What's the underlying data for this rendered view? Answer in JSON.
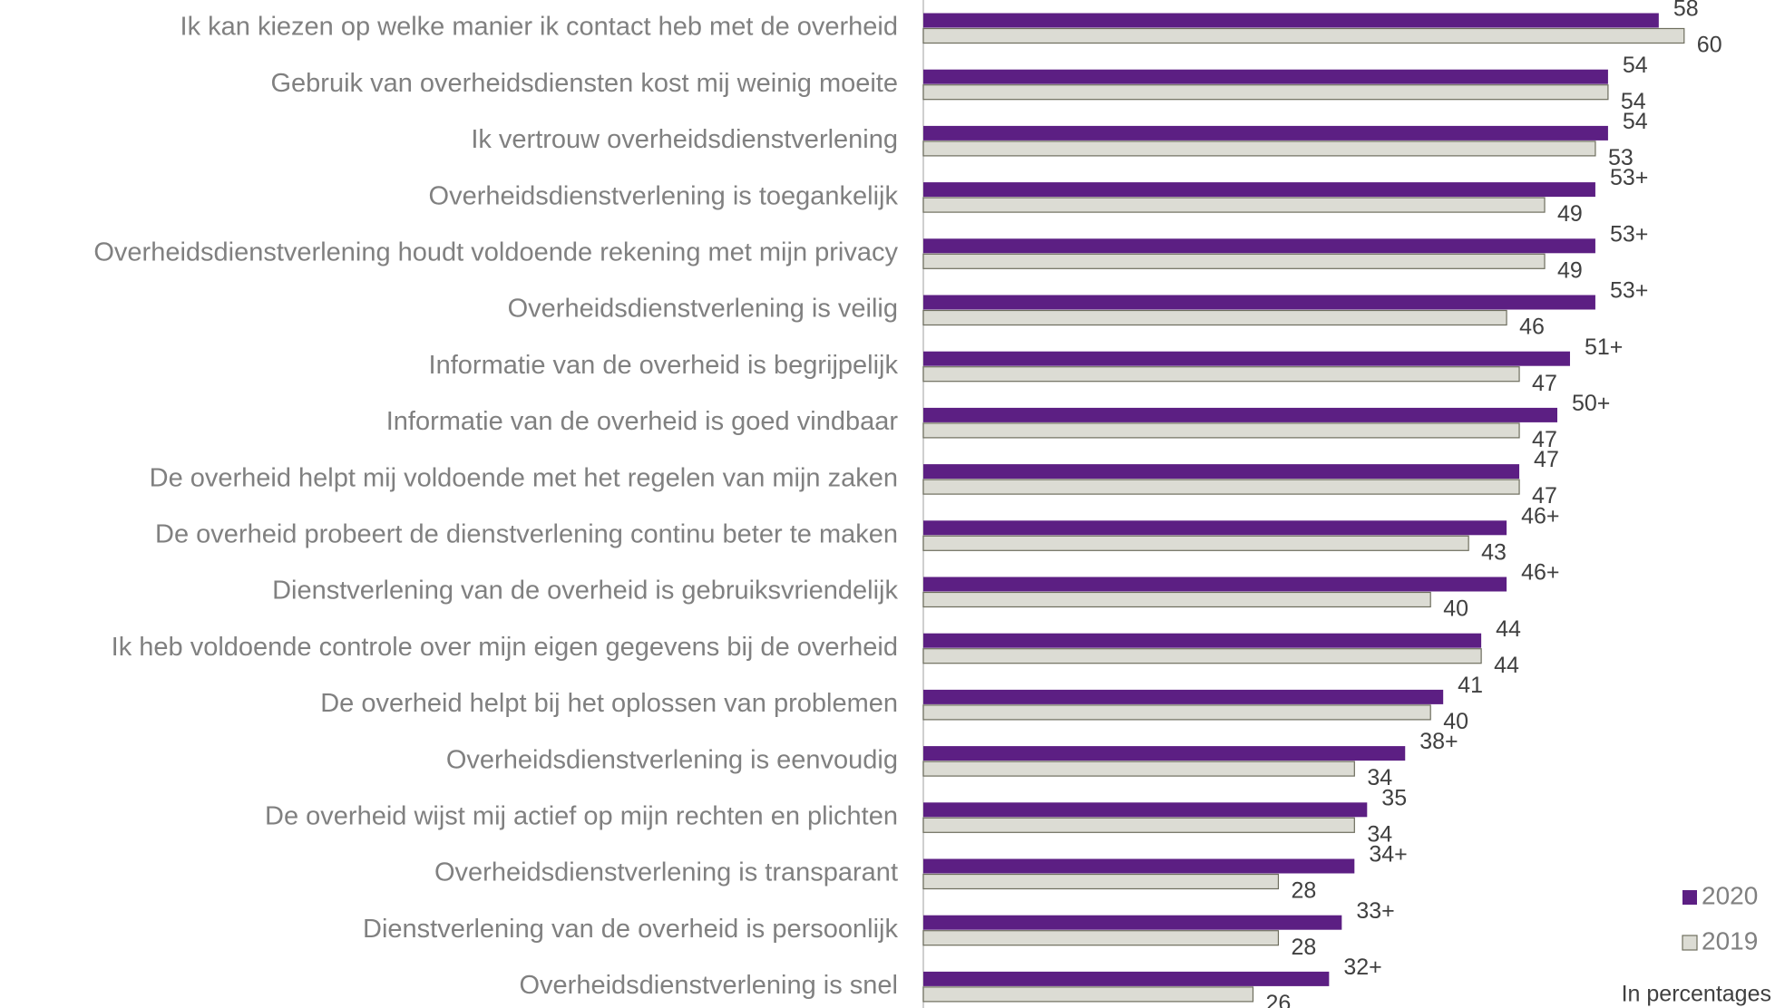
{
  "chart_data": {
    "type": "bar",
    "orientation": "horizontal",
    "note": "In percentages",
    "categories": [
      "Ik kan kiezen op welke manier ik contact heb met de overheid",
      "Gebruik van overheidsdiensten kost mij weinig moeite",
      "Ik vertrouw overheidsdienstverlening",
      "Overheidsdienstverlening is toegankelijk",
      "Overheidsdienstverlening houdt voldoende rekening met mijn privacy",
      "Overheidsdienstverlening is veilig",
      "Informatie van de overheid is begrijpelijk",
      "Informatie van de overheid is goed vindbaar",
      "De overheid helpt mij voldoende met het regelen van mijn zaken",
      "De overheid probeert de dienstverlening continu beter te maken",
      "Dienstverlening van de overheid is gebruiksvriendelijk",
      "Ik heb voldoende controle over mijn eigen gegevens bij de overheid",
      "De overheid helpt bij het oplossen van problemen",
      "Overheidsdienstverlening is eenvoudig",
      "De overheid wijst mij actief op mijn rechten en plichten",
      "Overheidsdienstverlening is transparant",
      "Dienstverlening van de overheid is persoonlijk",
      "Overheidsdienstverlening is snel"
    ],
    "series": [
      {
        "name": "2020",
        "color": "#5c1f83",
        "values": [
          58,
          54,
          54,
          53,
          53,
          53,
          51,
          50,
          47,
          46,
          46,
          44,
          41,
          38,
          35,
          34,
          33,
          32
        ],
        "value_labels": [
          "58",
          "54",
          "54",
          "53+",
          "53+",
          "53+",
          "51+",
          "50+",
          "47",
          "46+",
          "46+",
          "44",
          "41",
          "38+",
          "35",
          "34+",
          "33+",
          "32+"
        ]
      },
      {
        "name": "2019",
        "color": "#dcdcd4",
        "values": [
          60,
          54,
          53,
          49,
          49,
          46,
          47,
          47,
          47,
          43,
          40,
          44,
          40,
          34,
          34,
          28,
          28,
          26
        ]
      }
    ],
    "legend": "bottom-right"
  }
}
